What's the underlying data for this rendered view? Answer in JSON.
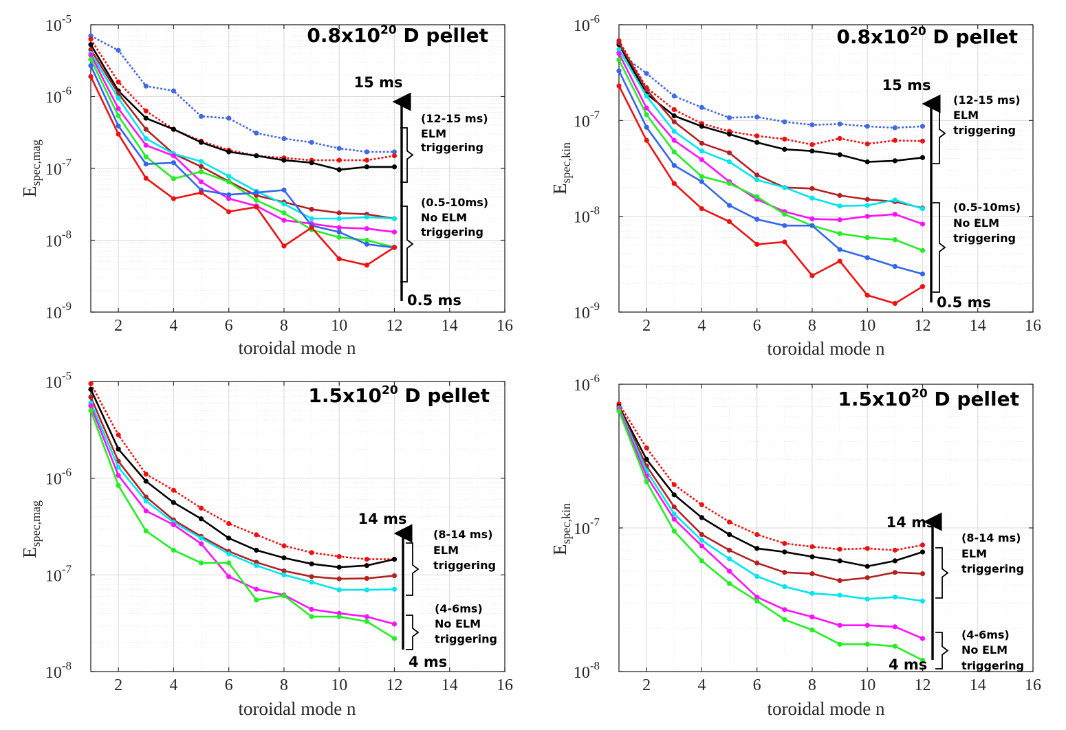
{
  "chart_data": [
    {
      "type": "line",
      "id": "p1",
      "title": "0.8x10",
      "title_sup": "20",
      "title_suffix": " D pellet",
      "xlabel": "toroidal mode n",
      "ylabel_main": "E",
      "ylabel_sub": "spec,mag",
      "xlim": [
        1,
        16
      ],
      "ylim": [
        1e-09,
        1e-05
      ],
      "xticks": [
        2,
        4,
        6,
        8,
        10,
        12,
        14,
        16
      ],
      "yticks": [
        "-9",
        "-8",
        "-7",
        "-6",
        "-5"
      ],
      "ytick_base": "10",
      "x": [
        1,
        2,
        3,
        4,
        5,
        6,
        7,
        8,
        9,
        10,
        11,
        12
      ],
      "series": [
        {
          "name": "t15",
          "color": "#4169E1",
          "dashed": true,
          "values": [
            7e-06,
            4.4e-06,
            1.4e-06,
            1.2e-06,
            5.3e-07,
            5e-07,
            3.1e-07,
            2.6e-07,
            2.3e-07,
            1.9e-07,
            1.7e-07,
            1.7e-07
          ]
        },
        {
          "name": "t14",
          "color": "#EE1111",
          "dashed": true,
          "values": [
            6.3e-06,
            1.6e-06,
            6.3e-07,
            3.5e-07,
            2.4e-07,
            1.8e-07,
            1.5e-07,
            1.4e-07,
            1.3e-07,
            1.3e-07,
            1.3e-07,
            1.5e-07
          ]
        },
        {
          "name": "t12",
          "color": "#000000",
          "dashed": false,
          "values": [
            5.3e-06,
            1.2e-06,
            5e-07,
            3.5e-07,
            2.3e-07,
            1.7e-07,
            1.5e-07,
            1.3e-07,
            1.2e-07,
            9.6e-08,
            1.05e-07,
            1.05e-07
          ]
        },
        {
          "name": "t10",
          "color": "#B22222",
          "dashed": false,
          "values": [
            4.5e-06,
            1.1e-06,
            3.5e-07,
            1.6e-07,
            1.06e-07,
            6.6e-08,
            4.2e-08,
            3.4e-08,
            2.7e-08,
            2.4e-08,
            2.3e-08,
            2e-08
          ]
        },
        {
          "name": "t8",
          "color": "#00E5EE",
          "dashed": false,
          "values": [
            4e-06,
            9.5e-07,
            2.6e-07,
            1.6e-07,
            1.25e-07,
            7.8e-08,
            4.8e-08,
            3.2e-08,
            2e-08,
            2e-08,
            2.1e-08,
            2e-08
          ]
        },
        {
          "name": "t6",
          "color": "#FF10FF",
          "dashed": false,
          "values": [
            3.8e-06,
            6.8e-07,
            2.1e-07,
            1.5e-07,
            6.5e-08,
            3.8e-08,
            3e-08,
            1.9e-08,
            1.7e-08,
            1.5e-08,
            1.45e-08,
            1.3e-08
          ]
        },
        {
          "name": "t4",
          "color": "#22EE22",
          "dashed": false,
          "values": [
            3.3e-06,
            5.4e-07,
            1.45e-07,
            7.2e-08,
            9e-08,
            6.5e-08,
            3.6e-08,
            2.4e-08,
            1.4e-08,
            1.1e-08,
            1e-08,
            8e-09
          ]
        },
        {
          "name": "t2",
          "color": "#3366EE",
          "dashed": false,
          "values": [
            2.7e-06,
            3.9e-07,
            1.15e-07,
            1.2e-07,
            5e-08,
            4.3e-08,
            4.6e-08,
            5e-08,
            1.6e-08,
            1.3e-08,
            8.8e-09,
            7.9e-09
          ]
        },
        {
          "name": "t0_5",
          "color": "#EE1111",
          "dashed": false,
          "values": [
            1.9e-06,
            3e-07,
            7.3e-08,
            3.8e-08,
            4.6e-08,
            2.5e-08,
            2.9e-08,
            8.3e-09,
            1.5e-08,
            5.5e-09,
            4.5e-09,
            8e-09
          ]
        }
      ],
      "annotations": {
        "top_time": "15 ms",
        "bottom_time": "0.5 ms",
        "upper_range": "(12-15 ms)",
        "upper_line1": "ELM",
        "upper_line2": "triggering",
        "lower_range": "(0.5-10ms)",
        "lower_line1": "No ELM",
        "lower_line2": "triggering"
      }
    },
    {
      "type": "line",
      "id": "p2",
      "title": "0.8x10",
      "title_sup": "20",
      "title_suffix": " D pellet",
      "xlabel": "toroidal mode n",
      "ylabel_main": "E",
      "ylabel_sub": "spec,kin",
      "xlim": [
        1,
        16
      ],
      "ylim": [
        1e-09,
        1e-06
      ],
      "xticks": [
        2,
        4,
        6,
        8,
        10,
        12,
        14,
        16
      ],
      "yticks": [
        "-9",
        "-8",
        "-7",
        "-6"
      ],
      "ytick_base": "10",
      "x": [
        1,
        2,
        3,
        4,
        5,
        6,
        7,
        8,
        9,
        10,
        11,
        12
      ],
      "series": [
        {
          "name": "t15",
          "color": "#4169E1",
          "dashed": true,
          "values": [
            5.1e-07,
            3.1e-07,
            1.8e-07,
            1.37e-07,
            1.07e-07,
            1.09e-07,
            9.7e-08,
            9e-08,
            9.2e-08,
            8.7e-08,
            8.4e-08,
            8.7e-08
          ]
        },
        {
          "name": "t14",
          "color": "#EE1111",
          "dashed": true,
          "values": [
            6.8e-07,
            2.2e-07,
            1.3e-07,
            9.3e-08,
            7.7e-08,
            6.9e-08,
            6.4e-08,
            5.6e-08,
            6.5e-08,
            5.7e-08,
            6.2e-08,
            6.1e-08
          ]
        },
        {
          "name": "t12",
          "color": "#000000",
          "dashed": false,
          "values": [
            6.2e-07,
            1.9e-07,
            1.12e-07,
            8.7e-08,
            7.2e-08,
            5.9e-08,
            5e-08,
            4.8e-08,
            4.4e-08,
            3.7e-08,
            3.8e-08,
            4.1e-08
          ]
        },
        {
          "name": "t10",
          "color": "#B22222",
          "dashed": false,
          "values": [
            6.5e-07,
            2.1e-07,
            9.7e-08,
            5.8e-08,
            4.6e-08,
            2.7e-08,
            2e-08,
            1.95e-08,
            1.65e-08,
            1.5e-08,
            1.42e-08,
            1.22e-08
          ]
        },
        {
          "name": "t8",
          "color": "#00E5EE",
          "dashed": false,
          "values": [
            5.5e-07,
            1.8e-07,
            7.7e-08,
            4.8e-08,
            3.7e-08,
            2.4e-08,
            2e-08,
            1.55e-08,
            1.28e-08,
            1.3e-08,
            1.48e-08,
            1.2e-08
          ]
        },
        {
          "name": "t6",
          "color": "#FF10FF",
          "dashed": false,
          "values": [
            5e-07,
            1.35e-07,
            6.2e-08,
            3.9e-08,
            2.3e-08,
            1.5e-08,
            1.12e-08,
            9.4e-09,
            9.2e-09,
            1e-08,
            1.05e-08,
            8.3e-09
          ]
        },
        {
          "name": "t4",
          "color": "#22EE22",
          "dashed": false,
          "values": [
            4.3e-07,
            1.15e-07,
            4.7e-08,
            2.6e-08,
            2.2e-08,
            1.6e-08,
            1.05e-08,
            8e-09,
            6.6e-09,
            6e-09,
            5.7e-09,
            4.4e-09
          ]
        },
        {
          "name": "t2",
          "color": "#3366EE",
          "dashed": false,
          "values": [
            3.3e-07,
            8.5e-08,
            3.4e-08,
            2.3e-08,
            1.3e-08,
            9.3e-09,
            8e-09,
            8e-09,
            4.5e-09,
            3.7e-09,
            3e-09,
            2.5e-09
          ]
        },
        {
          "name": "t0_5",
          "color": "#EE1111",
          "dashed": false,
          "values": [
            2.3e-07,
            6.2e-08,
            2.2e-08,
            1.2e-08,
            8.8e-09,
            5.1e-09,
            5.4e-09,
            2.4e-09,
            3.4e-09,
            1.5e-09,
            1.23e-09,
            1.85e-09
          ]
        }
      ],
      "annotations": {
        "top_time": "15 ms",
        "bottom_time": "0.5 ms",
        "upper_range": "(12-15 ms)",
        "upper_line1": "ELM",
        "upper_line2": "triggering",
        "lower_range": "(0.5-10ms)",
        "lower_line1": "No ELM",
        "lower_line2": "triggering"
      }
    },
    {
      "type": "line",
      "id": "p3",
      "title": "1.5x10",
      "title_sup": "20",
      "title_suffix": " D pellet",
      "xlabel": "toroidal mode n",
      "ylabel_main": "E",
      "ylabel_sub": "spec,mag",
      "xlim": [
        1,
        16
      ],
      "ylim": [
        1e-08,
        1e-05
      ],
      "xticks": [
        2,
        4,
        6,
        8,
        10,
        12,
        14,
        16
      ],
      "yticks": [
        "-8",
        "-7",
        "-6",
        "-5"
      ],
      "ytick_base": "10",
      "x": [
        1,
        2,
        3,
        4,
        5,
        6,
        7,
        8,
        9,
        10,
        11,
        12
      ],
      "series": [
        {
          "name": "t14",
          "color": "#EE1111",
          "dashed": true,
          "values": [
            9.5e-06,
            2.8e-06,
            1.1e-06,
            7.5e-07,
            4.9e-07,
            3.4e-07,
            2.6e-07,
            2e-07,
            1.7e-07,
            1.55e-07,
            1.45e-07,
            1.45e-07
          ]
        },
        {
          "name": "t12",
          "color": "#000000",
          "dashed": false,
          "values": [
            8.3e-06,
            2e-06,
            9.3e-07,
            5.6e-07,
            3.8e-07,
            2.4e-07,
            1.8e-07,
            1.5e-07,
            1.3e-07,
            1.2e-07,
            1.25e-07,
            1.45e-07
          ]
        },
        {
          "name": "t10",
          "color": "#B22222",
          "dashed": false,
          "values": [
            6.9e-06,
            1.5e-06,
            6.4e-07,
            3.7e-07,
            2.5e-07,
            1.75e-07,
            1.35e-07,
            1.1e-07,
            9.6e-08,
            9.1e-08,
            9.2e-08,
            9.8e-08
          ]
        },
        {
          "name": "t8",
          "color": "#00E5EE",
          "dashed": false,
          "values": [
            6e-06,
            1.3e-06,
            5.8e-07,
            3.5e-07,
            2.4e-07,
            1.65e-07,
            1.25e-07,
            1e-07,
            8.4e-08,
            7e-08,
            7e-08,
            7.1e-08
          ]
        },
        {
          "name": "t6",
          "color": "#FF10FF",
          "dashed": false,
          "values": [
            5.6e-06,
            1.07e-06,
            4.6e-07,
            3.3e-07,
            2.1e-07,
            9.6e-08,
            7.1e-08,
            6.2e-08,
            4.4e-08,
            4e-08,
            3.7e-08,
            3.1e-08
          ]
        },
        {
          "name": "t4",
          "color": "#22EE22",
          "dashed": false,
          "values": [
            5e-06,
            8.4e-07,
            2.85e-07,
            1.8e-07,
            1.33e-07,
            1.33e-07,
            5.5e-08,
            6.1e-08,
            3.7e-08,
            3.7e-08,
            3.3e-08,
            2.2e-08
          ]
        }
      ],
      "annotations": {
        "top_time": "14 ms",
        "bottom_time": "4 ms",
        "upper_range": "(8-14 ms)",
        "upper_line1": "ELM",
        "upper_line2": "triggering",
        "lower_range": "(4-6ms)",
        "lower_line1": "No ELM",
        "lower_line2": "triggering"
      }
    },
    {
      "type": "line",
      "id": "p4",
      "title": "1.5x10",
      "title_sup": "20",
      "title_suffix": " D pellet",
      "xlabel": "toroidal mode n",
      "ylabel_main": "E",
      "ylabel_sub": "spec,kin",
      "xlim": [
        1,
        16
      ],
      "ylim": [
        1e-08,
        1e-06
      ],
      "xticks": [
        2,
        4,
        6,
        8,
        10,
        12,
        14,
        16
      ],
      "yticks": [
        "-8",
        "-7",
        "-6"
      ],
      "ytick_base": "10",
      "x": [
        1,
        2,
        3,
        4,
        5,
        6,
        7,
        8,
        9,
        10,
        11,
        12
      ],
      "series": [
        {
          "name": "t14",
          "color": "#EE1111",
          "dashed": true,
          "values": [
            7.3e-07,
            3.6e-07,
            2e-07,
            1.45e-07,
            1.1e-07,
            9e-08,
            7.8e-08,
            7.4e-08,
            7.1e-08,
            7.2e-08,
            7e-08,
            7.6e-08
          ]
        },
        {
          "name": "t12",
          "color": "#000000",
          "dashed": false,
          "values": [
            7e-07,
            3e-07,
            1.7e-07,
            1.18e-07,
            9e-08,
            7.2e-08,
            6.8e-08,
            6.3e-08,
            5.9e-08,
            5.4e-08,
            5.9e-08,
            6.8e-08
          ]
        },
        {
          "name": "t10",
          "color": "#B22222",
          "dashed": false,
          "values": [
            6.9e-07,
            2.7e-07,
            1.4e-07,
            9e-08,
            7e-08,
            5.7e-08,
            4.9e-08,
            4.8e-08,
            4.3e-08,
            4.5e-08,
            4.9e-08,
            4.8e-08
          ]
        },
        {
          "name": "t8",
          "color": "#00E5EE",
          "dashed": false,
          "values": [
            6.8e-07,
            2.5e-07,
            1.25e-07,
            8.2e-08,
            6.1e-08,
            4.6e-08,
            3.9e-08,
            3.5e-08,
            3.4e-08,
            3.2e-08,
            3.3e-08,
            3.1e-08
          ]
        },
        {
          "name": "t6",
          "color": "#FF10FF",
          "dashed": false,
          "values": [
            6.7e-07,
            2.3e-07,
            1.15e-07,
            7.5e-08,
            5e-08,
            3.3e-08,
            2.7e-08,
            2.4e-08,
            2.1e-08,
            2.1e-08,
            2.05e-08,
            1.7e-08
          ]
        },
        {
          "name": "t4",
          "color": "#22EE22",
          "dashed": false,
          "values": [
            6.5e-07,
            2.1e-07,
            9.5e-08,
            5.9e-08,
            4.1e-08,
            3.1e-08,
            2.3e-08,
            1.95e-08,
            1.55e-08,
            1.55e-08,
            1.5e-08,
            1.2e-08
          ]
        }
      ],
      "annotations": {
        "top_time": "14 ms",
        "bottom_time": "4 ms",
        "upper_range": "(8-14 ms)",
        "upper_line1": "ELM",
        "upper_line2": "triggering",
        "lower_range": "(4-6ms)",
        "lower_line1": "No ELM",
        "lower_line2": "triggering"
      }
    }
  ]
}
